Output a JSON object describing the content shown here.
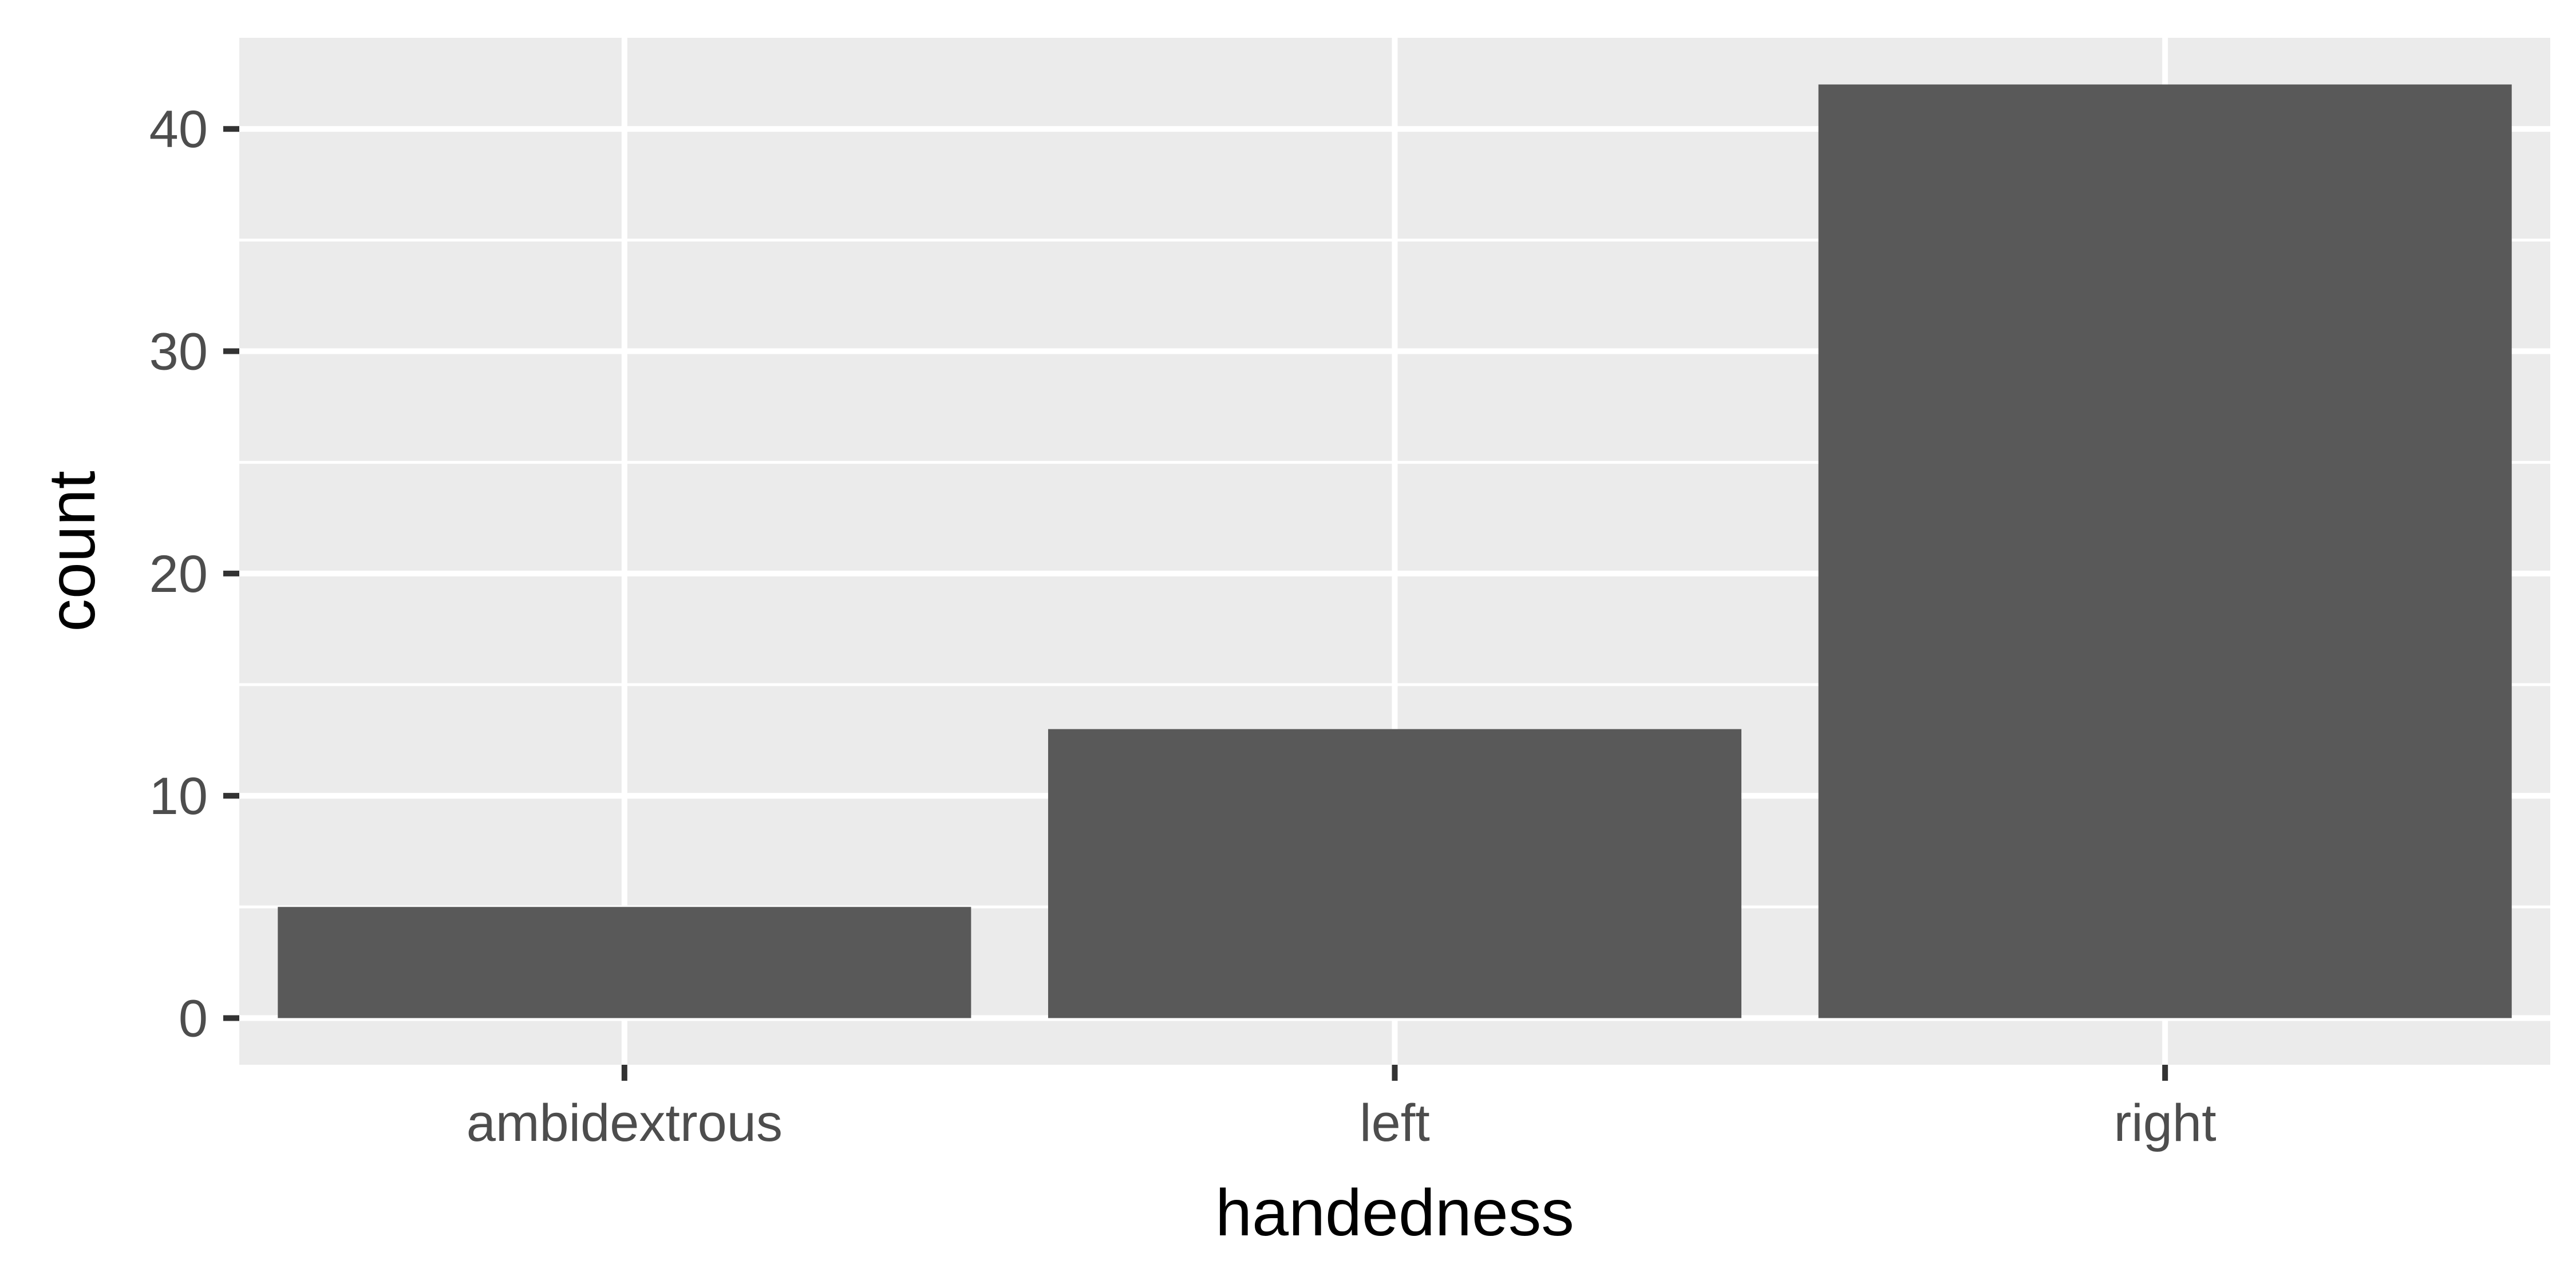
{
  "chart_data": {
    "type": "bar",
    "title": "",
    "xlabel": "handedness",
    "ylabel": "count",
    "categories": [
      "ambidextrous",
      "left",
      "right"
    ],
    "values": [
      5,
      13,
      42
    ],
    "ylim": [
      -2.1,
      44.1
    ],
    "yticks": [
      0,
      10,
      20,
      30,
      40
    ],
    "ytick_labels": [
      "0",
      "10",
      "20",
      "30",
      "40"
    ],
    "grid": true,
    "legend": "none",
    "colors": {
      "bar": "#595959",
      "panel": "#ebebeb",
      "grid": "#ffffff",
      "tick_text": "#4d4d4d",
      "tick_mark": "#333333",
      "title_text": "#000000"
    }
  }
}
